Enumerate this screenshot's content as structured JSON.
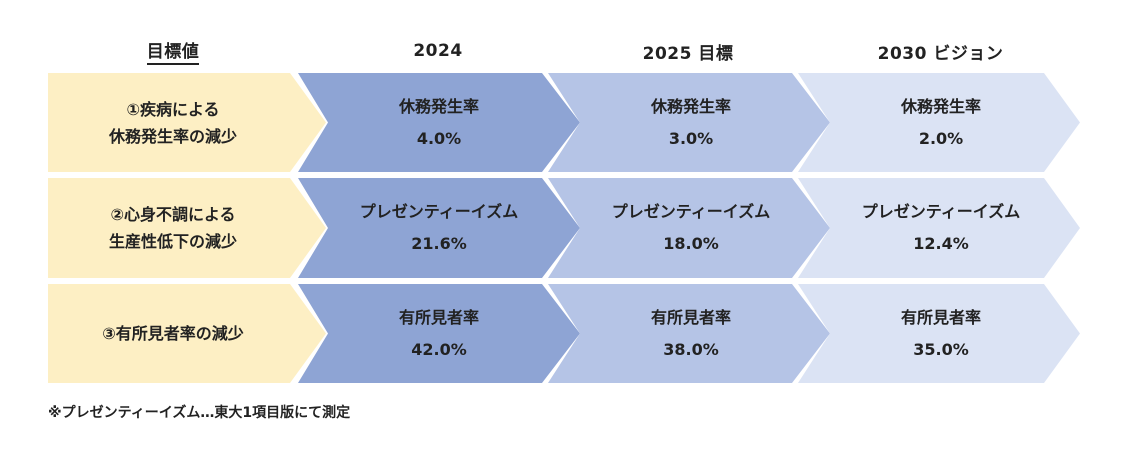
{
  "headers": {
    "label": "目標値",
    "col1": "2024",
    "col2": "2025 目標",
    "col3": "2030 ビジョン"
  },
  "rows": [
    {
      "label_line1": "①疾病による",
      "label_line2": "休務発生率の減少",
      "metric": "休務発生率",
      "v2024": "4.0%",
      "v2025": "3.0%",
      "v2030": "2.0%"
    },
    {
      "label_line1": "②心身不調による",
      "label_line2": "生産性低下の減少",
      "metric": "プレゼンティーイズム",
      "v2024": "21.6%",
      "v2025": "18.0%",
      "v2030": "12.4%"
    },
    {
      "label_line1": "③有所見者率の減少",
      "label_line2": "",
      "metric": "有所見者率",
      "v2024": "42.0%",
      "v2025": "38.0%",
      "v2030": "35.0%"
    }
  ],
  "footnote": "※プレゼンティーイズム…東大1項目版にて測定",
  "colors": {
    "label_bg": "#fdefc4",
    "col_2024": "#8ea4d4",
    "col_2025": "#b5c4e6",
    "col_2030": "#dbe3f4"
  }
}
